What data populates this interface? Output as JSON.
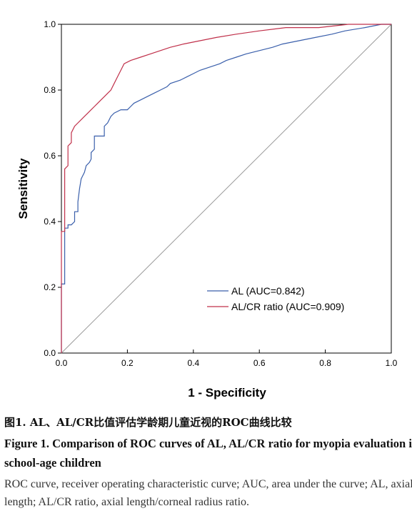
{
  "chart_data": {
    "type": "line",
    "xlabel": "1 - Specificity",
    "ylabel": "Sensitivity",
    "xlim": [
      0,
      1
    ],
    "ylim": [
      0,
      1
    ],
    "x_ticks": [
      "0.0",
      "0.2",
      "0.4",
      "0.6",
      "0.8",
      "1.0"
    ],
    "y_ticks": [
      "0.0",
      "0.2",
      "0.4",
      "0.6",
      "0.8",
      "1.0"
    ],
    "grid": false,
    "legend_position": "bottom-right",
    "colors": {
      "AL": "#3a5fab",
      "AL/CR ratio": "#c0304a",
      "reference": "#999999"
    },
    "series": [
      {
        "name": "AL (AUC=0.842)",
        "points": [
          [
            0,
            0
          ],
          [
            0,
            0.21
          ],
          [
            0.01,
            0.21
          ],
          [
            0.01,
            0.38
          ],
          [
            0.02,
            0.38
          ],
          [
            0.02,
            0.39
          ],
          [
            0.03,
            0.39
          ],
          [
            0.04,
            0.4
          ],
          [
            0.04,
            0.43
          ],
          [
            0.05,
            0.43
          ],
          [
            0.05,
            0.46
          ],
          [
            0.055,
            0.5
          ],
          [
            0.06,
            0.53
          ],
          [
            0.07,
            0.55
          ],
          [
            0.075,
            0.57
          ],
          [
            0.085,
            0.58
          ],
          [
            0.09,
            0.59
          ],
          [
            0.09,
            0.61
          ],
          [
            0.1,
            0.62
          ],
          [
            0.1,
            0.66
          ],
          [
            0.12,
            0.66
          ],
          [
            0.13,
            0.66
          ],
          [
            0.13,
            0.69
          ],
          [
            0.14,
            0.7
          ],
          [
            0.15,
            0.72
          ],
          [
            0.16,
            0.73
          ],
          [
            0.18,
            0.74
          ],
          [
            0.2,
            0.74
          ],
          [
            0.21,
            0.75
          ],
          [
            0.22,
            0.76
          ],
          [
            0.24,
            0.77
          ],
          [
            0.26,
            0.78
          ],
          [
            0.28,
            0.79
          ],
          [
            0.3,
            0.8
          ],
          [
            0.32,
            0.81
          ],
          [
            0.33,
            0.82
          ],
          [
            0.36,
            0.83
          ],
          [
            0.38,
            0.84
          ],
          [
            0.4,
            0.85
          ],
          [
            0.42,
            0.86
          ],
          [
            0.45,
            0.87
          ],
          [
            0.48,
            0.88
          ],
          [
            0.5,
            0.89
          ],
          [
            0.53,
            0.9
          ],
          [
            0.56,
            0.91
          ],
          [
            0.6,
            0.92
          ],
          [
            0.64,
            0.93
          ],
          [
            0.67,
            0.94
          ],
          [
            0.72,
            0.95
          ],
          [
            0.77,
            0.96
          ],
          [
            0.82,
            0.97
          ],
          [
            0.86,
            0.98
          ],
          [
            0.92,
            0.99
          ],
          [
            0.97,
            1.0
          ],
          [
            1,
            1
          ]
        ]
      },
      {
        "name": "AL/CR ratio (AUC=0.909)",
        "points": [
          [
            0,
            0
          ],
          [
            0,
            0.37
          ],
          [
            0.01,
            0.37
          ],
          [
            0.01,
            0.56
          ],
          [
            0.02,
            0.57
          ],
          [
            0.02,
            0.63
          ],
          [
            0.03,
            0.64
          ],
          [
            0.03,
            0.67
          ],
          [
            0.04,
            0.69
          ],
          [
            0.05,
            0.7
          ],
          [
            0.06,
            0.71
          ],
          [
            0.07,
            0.72
          ],
          [
            0.08,
            0.73
          ],
          [
            0.09,
            0.74
          ],
          [
            0.1,
            0.75
          ],
          [
            0.11,
            0.76
          ],
          [
            0.12,
            0.77
          ],
          [
            0.13,
            0.78
          ],
          [
            0.14,
            0.79
          ],
          [
            0.15,
            0.8
          ],
          [
            0.16,
            0.82
          ],
          [
            0.17,
            0.84
          ],
          [
            0.18,
            0.86
          ],
          [
            0.19,
            0.88
          ],
          [
            0.21,
            0.89
          ],
          [
            0.24,
            0.9
          ],
          [
            0.27,
            0.91
          ],
          [
            0.3,
            0.92
          ],
          [
            0.33,
            0.93
          ],
          [
            0.37,
            0.94
          ],
          [
            0.42,
            0.95
          ],
          [
            0.47,
            0.96
          ],
          [
            0.53,
            0.97
          ],
          [
            0.6,
            0.98
          ],
          [
            0.68,
            0.99
          ],
          [
            0.78,
            0.99
          ],
          [
            0.87,
            1.0
          ],
          [
            1,
            1
          ]
        ]
      }
    ],
    "reference_line": [
      [
        0,
        0
      ],
      [
        1,
        1
      ]
    ]
  },
  "caption": {
    "cn": "图1.   AL、AL/CR比值评估学龄期儿童近视的ROC曲线比较",
    "en_title": "Figure 1.    Comparison of ROC curves of AL, AL/CR ratio for myopia evaluation in school-age children",
    "note": "ROC curve, receiver operating characteristic curve; AUC, area under the curve; AL, axial length; AL/CR ratio, axial length/corneal radius ratio."
  }
}
